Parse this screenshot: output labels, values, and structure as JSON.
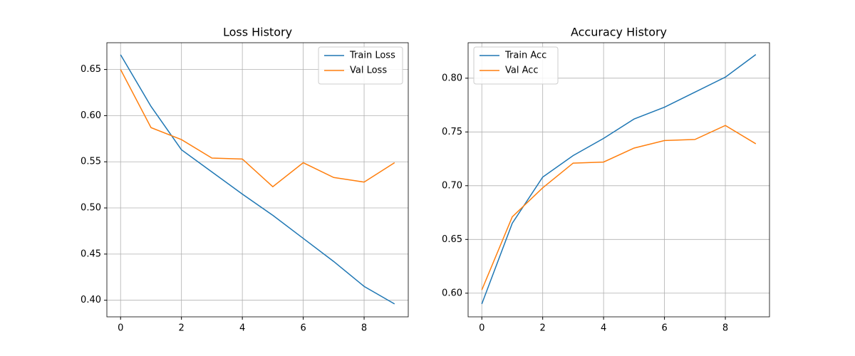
{
  "chart_data": [
    {
      "type": "line",
      "title": "Loss History",
      "legend": "upper right",
      "grid": true,
      "x": [
        0,
        1,
        2,
        3,
        4,
        5,
        6,
        7,
        8,
        9
      ],
      "xlim": [
        -0.45,
        9.45
      ],
      "xticks": [
        0,
        2,
        4,
        6,
        8
      ],
      "ylim": [
        0.382,
        0.679
      ],
      "yticks": [
        {
          "value": 0.4,
          "label": "0.40"
        },
        0.45,
        {
          "value": 0.5,
          "label": "0.50"
        },
        0.55,
        {
          "value": 0.6,
          "label": "0.60"
        },
        0.65
      ],
      "series": [
        {
          "name": "Train Loss",
          "color": "#1f77b4",
          "values": [
            0.666,
            0.61,
            0.563,
            0.539,
            0.515,
            0.492,
            0.467,
            0.442,
            0.415,
            0.396
          ]
        },
        {
          "name": "Val Loss",
          "color": "#ff7f0e",
          "values": [
            0.65,
            0.587,
            0.574,
            0.554,
            0.553,
            0.523,
            0.549,
            0.533,
            0.528,
            0.549
          ]
        }
      ]
    },
    {
      "type": "line",
      "title": "Accuracy History",
      "legend": "upper left",
      "grid": true,
      "x": [
        0,
        1,
        2,
        3,
        4,
        5,
        6,
        7,
        8,
        9
      ],
      "xlim": [
        -0.45,
        9.45
      ],
      "xticks": [
        0,
        2,
        4,
        6,
        8
      ],
      "ylim": [
        0.578,
        0.833
      ],
      "yticks": [
        {
          "value": 0.6,
          "label": "0.60"
        },
        0.65,
        {
          "value": 0.7,
          "label": "0.70"
        },
        0.75,
        {
          "value": 0.8,
          "label": "0.80"
        }
      ],
      "series": [
        {
          "name": "Train Acc",
          "color": "#1f77b4",
          "values": [
            0.59,
            0.665,
            0.708,
            0.728,
            0.744,
            0.762,
            0.773,
            0.787,
            0.801,
            0.822
          ]
        },
        {
          "name": "Val Acc",
          "color": "#ff7f0e",
          "values": [
            0.603,
            0.671,
            0.698,
            0.721,
            0.722,
            0.735,
            0.742,
            0.743,
            0.756,
            0.739
          ]
        }
      ]
    }
  ]
}
